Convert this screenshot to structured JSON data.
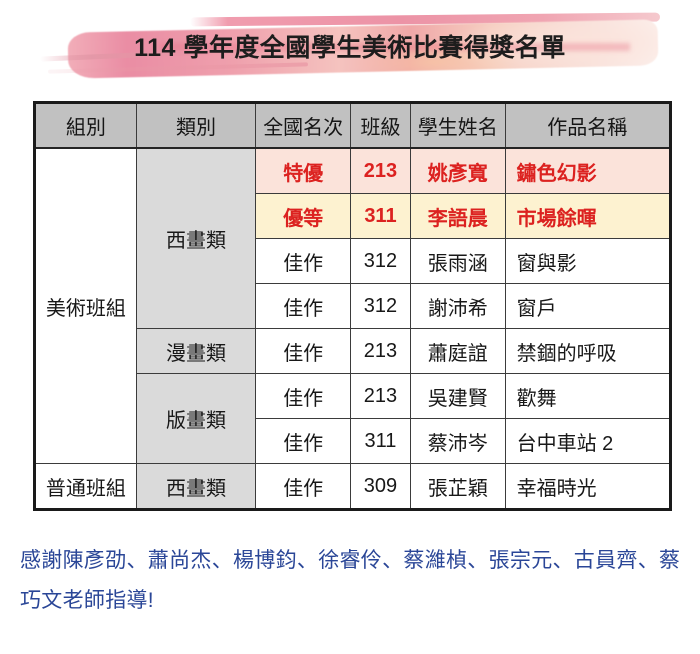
{
  "page": {
    "title": "114 學年度全國學生美術比賽得獎名單"
  },
  "table": {
    "headers": [
      "組別",
      "類別",
      "全國名次",
      "班級",
      "學生姓名",
      "作品名稱"
    ],
    "header_keys": [
      "group",
      "category",
      "rank",
      "class",
      "student",
      "work"
    ],
    "col_widths": [
      "16%",
      "18.8%",
      "14.9%",
      "9.4%",
      "14.9%",
      "26%"
    ],
    "rows": [
      {
        "group": {
          "text": "美術班組",
          "rowspan": 7
        },
        "category": {
          "text": "西畫類",
          "rowspan": 4
        },
        "rank": "特優",
        "class_no": "213",
        "student": "姚彥寬",
        "work": "鏽色幻影",
        "highlight": "pink"
      },
      {
        "rank": "優等",
        "class_no": "311",
        "student": "李語晨",
        "work": "市場餘暉",
        "highlight": "yellow"
      },
      {
        "rank": "佳作",
        "class_no": "312",
        "student": "張雨涵",
        "work": "窗與影"
      },
      {
        "rank": "佳作",
        "class_no": "312",
        "student": "謝沛希",
        "work": "窗戶"
      },
      {
        "category": {
          "text": "漫畫類",
          "rowspan": 1
        },
        "rank": "佳作",
        "class_no": "213",
        "student": "蕭庭誼",
        "work": "禁錮的呼吸"
      },
      {
        "category": {
          "text": "版畫類",
          "rowspan": 2
        },
        "rank": "佳作",
        "class_no": "213",
        "student": "吳建賢",
        "work": "歡舞"
      },
      {
        "rank": "佳作",
        "class_no": "311",
        "student": "蔡沛岑",
        "work": "台中車站 2"
      },
      {
        "group": {
          "text": "普通班組",
          "rowspan": 1
        },
        "category": {
          "text": "西畫類",
          "rowspan": 1
        },
        "rank": "佳作",
        "class_no": "309",
        "student": "張芷穎",
        "work": "幸福時光"
      }
    ]
  },
  "footer": {
    "text": "感謝陳彥劭、蕭尚杰、楊博鈞、徐睿伶、蔡濰楨、張宗元、古員齊、蔡巧文老師指導!"
  },
  "colors": {
    "header_bg": "#c1c1c1",
    "category_bg": "#dadada",
    "highlight_pink_bg": "#fbe3da",
    "highlight_yellow_bg": "#fdf2d0",
    "award_red": "#dc2220",
    "footer_blue": "#2a4697",
    "table_border": "#1a1a1a",
    "brush_pink": "#ec93a6",
    "title_text": "#1d1d1d"
  }
}
